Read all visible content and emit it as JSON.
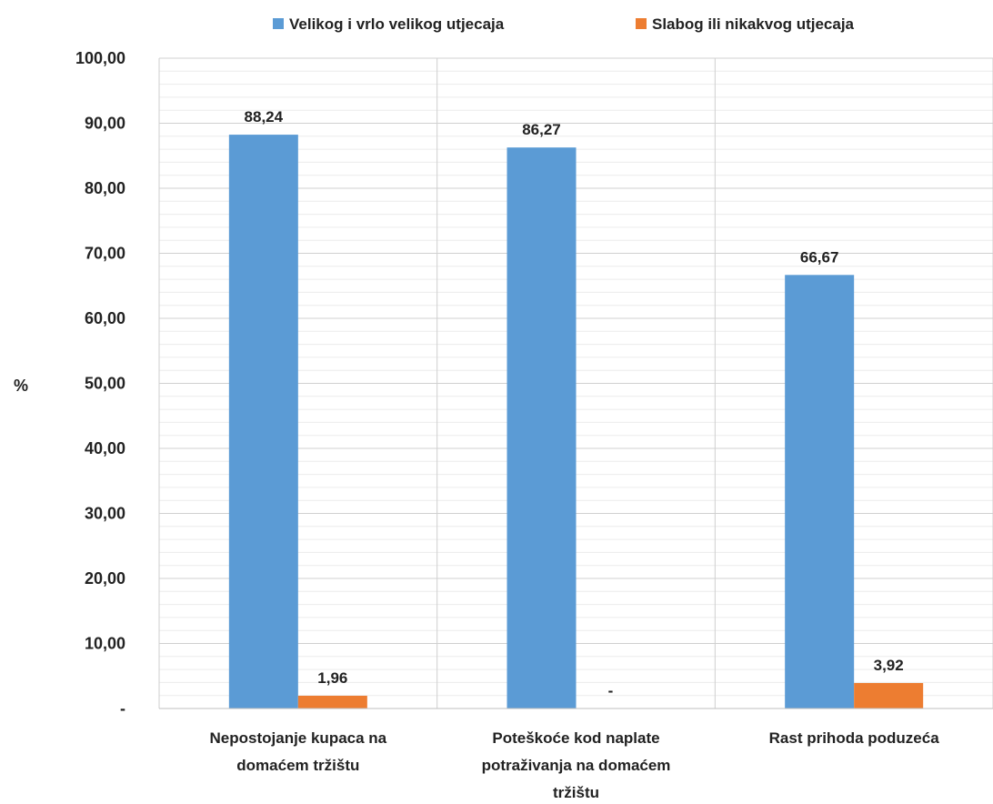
{
  "chart_data": {
    "type": "bar",
    "ylabel": "%",
    "ylim": [
      0,
      100
    ],
    "y_ticks": [
      {
        "value": 0,
        "label": "-"
      },
      {
        "value": 10,
        "label": "10,00"
      },
      {
        "value": 20,
        "label": "20,00"
      },
      {
        "value": 30,
        "label": "30,00"
      },
      {
        "value": 40,
        "label": "40,00"
      },
      {
        "value": 50,
        "label": "50,00"
      },
      {
        "value": 60,
        "label": "60,00"
      },
      {
        "value": 70,
        "label": "70,00"
      },
      {
        "value": 80,
        "label": "80,00"
      },
      {
        "value": 90,
        "label": "90,00"
      },
      {
        "value": 100,
        "label": "100,00"
      }
    ],
    "categories": [
      [
        "Nepostojanje kupaca na",
        "domaćem tržištu"
      ],
      [
        "Poteškoće kod naplate",
        "potraživanja na domaćem",
        "tržištu"
      ],
      [
        "Rast prihoda poduzeća"
      ]
    ],
    "series": [
      {
        "name": "Velikog i vrlo velikog utjecaja",
        "color": "#5B9BD5",
        "values": [
          88.24,
          86.27,
          66.67
        ],
        "data_labels": [
          "88,24",
          "86,27",
          "66,67"
        ]
      },
      {
        "name": "Slabog  ili nikakvog  utjecaja",
        "color": "#ED7D31",
        "values": [
          1.96,
          0,
          3.92
        ],
        "data_labels": [
          "1,96",
          "-",
          "3,92"
        ]
      }
    ],
    "legend_position": "top",
    "grid": true,
    "minor_grid": true
  }
}
